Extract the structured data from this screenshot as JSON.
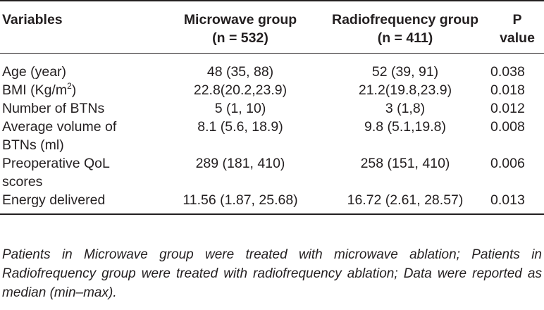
{
  "table": {
    "headers": [
      {
        "lines": [
          "Variables"
        ]
      },
      {
        "lines": [
          "Microwave group",
          "(n = 532)"
        ]
      },
      {
        "lines": [
          "Radiofrequency group",
          "(n = 411)"
        ]
      },
      {
        "lines": [
          "P",
          "value"
        ]
      }
    ],
    "rows": [
      {
        "variable_lines": [
          "Age (year)"
        ],
        "microwave": "48 (35, 88)",
        "radiofrequency": "52 (39, 91)",
        "p": "0.038"
      },
      {
        "variable_lines": [
          "BMI (Kg/m",
          "2",
          ")"
        ],
        "microwave": "22.8(20.2,23.9)",
        "radiofrequency": "21.2(19.8,23.9)",
        "p": "0.018"
      },
      {
        "variable_lines": [
          "Number of BTNs"
        ],
        "microwave": "5 (1, 10)",
        "radiofrequency": "3 (1,8)",
        "p": "0.012"
      },
      {
        "variable_lines": [
          "Average volume of",
          "BTNs (ml)"
        ],
        "microwave": "8.1 (5.6, 18.9)",
        "radiofrequency": "9.8 (5.1,19.8)",
        "p": "0.008"
      },
      {
        "variable_lines": [
          "Preoperative QoL",
          "scores"
        ],
        "microwave": "289 (181, 410)",
        "radiofrequency": "258 (151, 410)",
        "p": "0.006"
      },
      {
        "variable_lines": [
          "Energy delivered"
        ],
        "microwave": "11.56 (1.87, 25.68)",
        "radiofrequency": "16.72 (2.61, 28.57)",
        "p": "0.013"
      }
    ]
  },
  "footnote": "Patients in Microwave group were treated with microwave ablation; Patients in Radiofrequency group were treated with radiofrequency ablation; Data were reported as median (min–max)."
}
